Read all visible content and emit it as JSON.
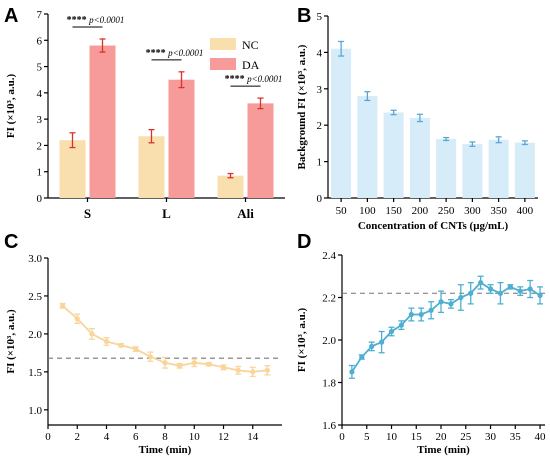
{
  "panel_letters": {
    "a": "A",
    "b": "B",
    "c": "C",
    "d": "D"
  },
  "chart_data": [
    {
      "panel": "A",
      "type": "bar",
      "categories": [
        "S",
        "L",
        "Ali"
      ],
      "series": [
        {
          "name": "NC",
          "values": [
            2.2,
            2.35,
            0.85
          ],
          "errors": [
            0.28,
            0.25,
            0.08
          ],
          "color": "#F9DEAE"
        },
        {
          "name": "DA",
          "values": [
            5.8,
            4.5,
            3.6
          ],
          "errors": [
            0.25,
            0.3,
            0.2
          ],
          "color": "#F79A9A"
        }
      ],
      "error_color": "#D9342B",
      "significance": [
        {
          "stars": "****",
          "text": "p<0.0001"
        },
        {
          "stars": "****",
          "text": "p<0.0001"
        },
        {
          "stars": "****",
          "text": "p<0.0001"
        }
      ],
      "ylabel": "FI (×10³, a.u.)",
      "yticks": [
        "0",
        "1",
        "2",
        "3",
        "4",
        "5",
        "6",
        "7"
      ],
      "ylim": [
        0,
        7
      ],
      "legend_position": "top-right"
    },
    {
      "panel": "B",
      "type": "bar",
      "categories": [
        "50",
        "100",
        "150",
        "200",
        "250",
        "300",
        "350",
        "400"
      ],
      "values": [
        4.1,
        2.8,
        2.35,
        2.2,
        1.62,
        1.48,
        1.6,
        1.52
      ],
      "errors": [
        0.2,
        0.12,
        0.06,
        0.1,
        0.04,
        0.06,
        0.08,
        0.05
      ],
      "color": "#D6ECF8",
      "error_color": "#5AA7D6",
      "ylabel": "Background FI (×10³, a.u.)",
      "xlabel": "Concentration of CNTs (μg/mL)",
      "yticks": [
        "0",
        "1",
        "2",
        "3",
        "4",
        "5"
      ],
      "ylim": [
        0,
        5
      ]
    },
    {
      "panel": "C",
      "type": "line",
      "x": [
        1,
        2,
        3,
        4,
        5,
        6,
        7,
        8,
        9,
        10,
        11,
        12,
        13,
        14,
        15
      ],
      "values": [
        2.37,
        2.2,
        2.0,
        1.9,
        1.85,
        1.8,
        1.7,
        1.62,
        1.58,
        1.62,
        1.6,
        1.56,
        1.52,
        1.5,
        1.52
      ],
      "errors": [
        0.03,
        0.06,
        0.07,
        0.05,
        0.02,
        0.03,
        0.06,
        0.07,
        0.03,
        0.05,
        0.02,
        0.03,
        0.05,
        0.06,
        0.06
      ],
      "reference_line": 1.68,
      "color": "#F9D59B",
      "ylabel": "FI (×10³, a.u.)",
      "xlabel": "Time (min)",
      "xticks": [
        "0",
        "2",
        "4",
        "6",
        "8",
        "10",
        "12",
        "14"
      ],
      "yticks": [
        "1.0",
        "1.5",
        "2.0",
        "2.5",
        "3.0"
      ],
      "xlim": [
        0,
        16
      ],
      "ylim": [
        0.8,
        3.0
      ]
    },
    {
      "panel": "D",
      "type": "line",
      "x": [
        2,
        4,
        6,
        8,
        10,
        12,
        14,
        16,
        18,
        20,
        22,
        24,
        26,
        28,
        30,
        32,
        34,
        36,
        38,
        40
      ],
      "values": [
        1.85,
        1.92,
        1.97,
        1.99,
        2.04,
        2.07,
        2.12,
        2.12,
        2.14,
        2.18,
        2.17,
        2.2,
        2.22,
        2.27,
        2.24,
        2.22,
        2.25,
        2.23,
        2.24,
        2.21
      ],
      "errors": [
        0.03,
        0.01,
        0.02,
        0.05,
        0.02,
        0.02,
        0.03,
        0.03,
        0.04,
        0.05,
        0.02,
        0.06,
        0.05,
        0.03,
        0.02,
        0.05,
        0.01,
        0.02,
        0.04,
        0.04
      ],
      "reference_line": 2.22,
      "color": "#4FAFD2",
      "ylabel": "FI (×10³, a.u.)",
      "xlabel": "Time (min)",
      "xticks": [
        "0",
        "5",
        "10",
        "15",
        "20",
        "25",
        "30",
        "35",
        "40"
      ],
      "yticks": [
        "1.6",
        "1.8",
        "2.0",
        "2.2",
        "2.4"
      ],
      "xlim": [
        0,
        41
      ],
      "ylim": [
        1.6,
        2.4
      ]
    }
  ]
}
